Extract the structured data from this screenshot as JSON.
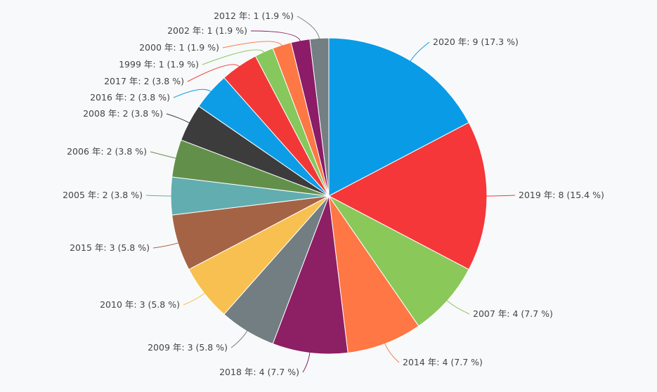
{
  "chart_data": {
    "type": "pie",
    "title": "",
    "slices": [
      {
        "label": "2020 年: 9 (17.3 %)",
        "year": "2020",
        "value": 9,
        "percent": 17.3,
        "color": "#0a9be6"
      },
      {
        "label": "2019 年: 8 (15.4 %)",
        "year": "2019",
        "value": 8,
        "percent": 15.4,
        "color": "#f5373a"
      },
      {
        "label": "2007 年: 4 (7.7 %)",
        "year": "2007",
        "value": 4,
        "percent": 7.7,
        "color": "#8bc85a"
      },
      {
        "label": "2014 年: 4 (7.7 %)",
        "year": "2014",
        "value": 4,
        "percent": 7.7,
        "color": "#fe7744"
      },
      {
        "label": "2018 年: 4 (7.7 %)",
        "year": "2018",
        "value": 4,
        "percent": 7.7,
        "color": "#8d1f65"
      },
      {
        "label": "2009 年: 3 (5.8 %)",
        "year": "2009",
        "value": 3,
        "percent": 5.8,
        "color": "#727e82"
      },
      {
        "label": "2010 年: 3 (5.8 %)",
        "year": "2010",
        "value": 3,
        "percent": 5.8,
        "color": "#f8c050"
      },
      {
        "label": "2015 年: 3 (5.8 %)",
        "year": "2015",
        "value": 3,
        "percent": 5.8,
        "color": "#a56346"
      },
      {
        "label": "2005 年: 2 (3.8 %)",
        "year": "2005",
        "value": 2,
        "percent": 3.8,
        "color": "#62adb0"
      },
      {
        "label": "2006 年: 2 (3.8 %)",
        "year": "2006",
        "value": 2,
        "percent": 3.8,
        "color": "#62904b"
      },
      {
        "label": "2008 年: 2 (3.8 %)",
        "year": "2008",
        "value": 2,
        "percent": 3.8,
        "color": "#3c3c3d"
      },
      {
        "label": "2016 年: 2 (3.8 %)",
        "year": "2016",
        "value": 2,
        "percent": 3.8,
        "color": "#0d9de6"
      },
      {
        "label": "2017 年: 2 (3.8 %)",
        "year": "2017",
        "value": 2,
        "percent": 3.8,
        "color": "#f23837"
      },
      {
        "label": "1999 年: 1 (1.9 %)",
        "year": "1999",
        "value": 1,
        "percent": 1.9,
        "color": "#86c85d"
      },
      {
        "label": "2000 年: 1 (1.9 %)",
        "year": "2000",
        "value": 1,
        "percent": 1.9,
        "color": "#fd7845"
      },
      {
        "label": "2002 年: 1 (1.9 %)",
        "year": "2002",
        "value": 1,
        "percent": 1.9,
        "color": "#8c1c67"
      },
      {
        "label": "2012 年: 1 (1.9 %)",
        "year": "2012",
        "value": 1,
        "percent": 1.9,
        "color": "#737f82"
      }
    ],
    "start_angle": "12 o'clock",
    "direction": "clockwise",
    "legend": "none"
  }
}
